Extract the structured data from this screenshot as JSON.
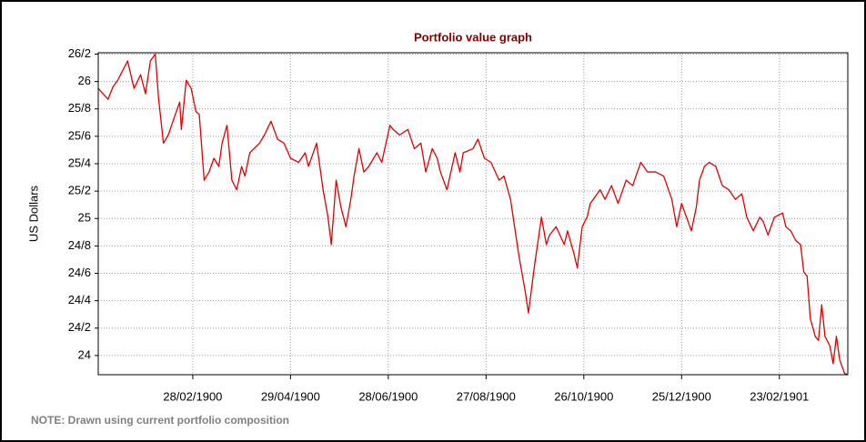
{
  "chart_data": {
    "type": "line",
    "title": "Portfolio value graph",
    "y_label": "US Dollars",
    "note": "NOTE: Drawn using current portfolio composition",
    "xlim": [
      "1900-01-01",
      "1901-04-06"
    ],
    "xticks": [
      {
        "value": "1900-02-28",
        "label": "28/02/1900"
      },
      {
        "value": "1900-04-29",
        "label": "29/04/1900"
      },
      {
        "value": "1900-06-28",
        "label": "28/06/1900"
      },
      {
        "value": "1900-08-27",
        "label": "27/08/1900"
      },
      {
        "value": "1900-10-26",
        "label": "26/10/1900"
      },
      {
        "value": "1900-12-25",
        "label": "25/12/1900"
      },
      {
        "value": "1901-02-23",
        "label": "23/02/1901"
      }
    ],
    "ylim": [
      23.86,
      26.21
    ],
    "yticks": [
      24,
      {
        "value": 24.2,
        "label": "24/2"
      },
      {
        "value": 24.4,
        "label": "24/4"
      },
      {
        "value": 24.6,
        "label": "24/6"
      },
      {
        "value": 24.8,
        "label": "24/8"
      },
      25,
      {
        "value": 25.2,
        "label": "25/2"
      },
      {
        "value": 25.4,
        "label": "25/4"
      },
      {
        "value": 25.6,
        "label": "25/6"
      },
      {
        "value": 25.8,
        "label": "25/8"
      },
      26,
      {
        "value": 26.2,
        "label": "26/2"
      }
    ],
    "grid": true,
    "x": [
      "1900-01-01",
      "1900-01-07",
      "1900-01-10",
      "1900-01-13",
      "1900-01-19",
      "1900-01-23",
      "1900-01-27",
      "1900-01-30",
      "1900-02-02",
      "1900-02-05",
      "1900-02-07",
      "1900-02-10",
      "1900-02-13",
      "1900-02-17",
      "1900-02-20",
      "1900-02-21",
      "1900-02-24",
      "1900-02-27",
      "1900-03-02",
      "1900-03-04",
      "1900-03-07",
      "1900-03-10",
      "1900-03-13",
      "1900-03-16",
      "1900-03-18",
      "1900-03-21",
      "1900-03-24",
      "1900-03-27",
      "1900-03-30",
      "1900-04-01",
      "1900-04-04",
      "1900-04-10",
      "1900-04-13",
      "1900-04-17",
      "1900-04-21",
      "1900-04-25",
      "1900-04-29",
      "1900-05-04",
      "1900-05-08",
      "1900-05-10",
      "1900-05-15",
      "1900-05-19",
      "1900-05-22",
      "1900-05-24",
      "1900-05-27",
      "1900-05-30",
      "1900-06-02",
      "1900-06-05",
      "1900-06-07",
      "1900-06-10",
      "1900-06-13",
      "1900-06-16",
      "1900-06-19",
      "1900-06-21",
      "1900-06-24",
      "1900-06-29",
      "1900-07-01",
      "1900-07-05",
      "1900-07-10",
      "1900-07-14",
      "1900-07-18",
      "1900-07-21",
      "1900-07-25",
      "1900-07-28",
      "1900-07-30",
      "1900-08-03",
      "1900-08-08",
      "1900-08-11",
      "1900-08-13",
      "1900-08-19",
      "1900-08-22",
      "1900-08-26",
      "1900-08-30",
      "1900-09-04",
      "1900-09-07",
      "1900-09-11",
      "1900-09-16",
      "1900-09-20",
      "1900-09-22",
      "1900-09-26",
      "1900-09-30",
      "1900-10-03",
      "1900-10-05",
      "1900-10-09",
      "1900-10-14",
      "1900-10-16",
      "1900-10-20",
      "1900-10-22",
      "1900-10-25",
      "1900-10-28",
      "1900-10-30",
      "1900-11-05",
      "1900-11-08",
      "1900-11-12",
      "1900-11-16",
      "1900-11-21",
      "1900-11-25",
      "1900-11-27",
      "1900-11-30",
      "1900-12-04",
      "1900-12-09",
      "1900-12-14",
      "1900-12-19",
      "1900-12-22",
      "1900-12-25",
      "1900-12-28",
      "1900-12-31",
      "1901-01-03",
      "1901-01-05",
      "1901-01-08",
      "1901-01-11",
      "1901-01-15",
      "1901-01-19",
      "1901-01-23",
      "1901-01-27",
      "1901-01-31",
      "1901-02-03",
      "1901-02-07",
      "1901-02-11",
      "1901-02-13",
      "1901-02-16",
      "1901-02-20",
      "1901-02-25",
      "1901-02-27",
      "1901-03-02",
      "1901-03-05",
      "1901-03-08",
      "1901-03-10",
      "1901-03-12",
      "1901-03-14",
      "1901-03-17",
      "1901-03-19",
      "1901-03-21",
      "1901-03-23",
      "1901-03-26",
      "1901-03-28",
      "1901-03-30",
      "1901-04-01",
      "1901-04-04",
      "1901-04-06"
    ],
    "series": [
      {
        "name": "Portfolio value",
        "color": "#e00000",
        "values": [
          25.95,
          25.87,
          25.96,
          26.01,
          26.15,
          25.95,
          26.05,
          25.91,
          26.15,
          26.2,
          25.88,
          25.55,
          25.61,
          25.75,
          25.85,
          25.65,
          26.01,
          25.95,
          25.78,
          25.76,
          25.28,
          25.34,
          25.44,
          25.38,
          25.55,
          25.68,
          25.28,
          25.21,
          25.38,
          25.31,
          25.48,
          25.55,
          25.61,
          25.71,
          25.58,
          25.55,
          25.44,
          25.41,
          25.48,
          25.38,
          25.55,
          25.21,
          25.01,
          24.81,
          25.28,
          25.08,
          24.94,
          25.14,
          25.31,
          25.51,
          25.34,
          25.38,
          25.44,
          25.48,
          25.41,
          25.68,
          25.65,
          25.61,
          25.65,
          25.51,
          25.55,
          25.34,
          25.51,
          25.44,
          25.34,
          25.21,
          25.48,
          25.34,
          25.48,
          25.51,
          25.58,
          25.44,
          25.41,
          25.28,
          25.31,
          25.14,
          24.74,
          24.47,
          24.31,
          24.68,
          25.01,
          24.81,
          24.88,
          24.94,
          24.81,
          24.91,
          24.74,
          24.64,
          24.94,
          25.01,
          25.11,
          25.21,
          25.14,
          25.24,
          25.11,
          25.28,
          25.24,
          25.31,
          25.41,
          25.34,
          25.34,
          25.31,
          25.14,
          24.94,
          25.11,
          25.01,
          24.91,
          25.08,
          25.28,
          25.38,
          25.41,
          25.38,
          25.24,
          25.21,
          25.14,
          25.18,
          25.01,
          24.91,
          25.01,
          24.98,
          24.88,
          25.01,
          25.04,
          24.94,
          24.91,
          24.84,
          24.81,
          24.61,
          24.58,
          24.27,
          24.14,
          24.11,
          24.37,
          24.14,
          24.07,
          23.94,
          24.14,
          23.97,
          23.87,
          23.86
        ]
      }
    ]
  }
}
